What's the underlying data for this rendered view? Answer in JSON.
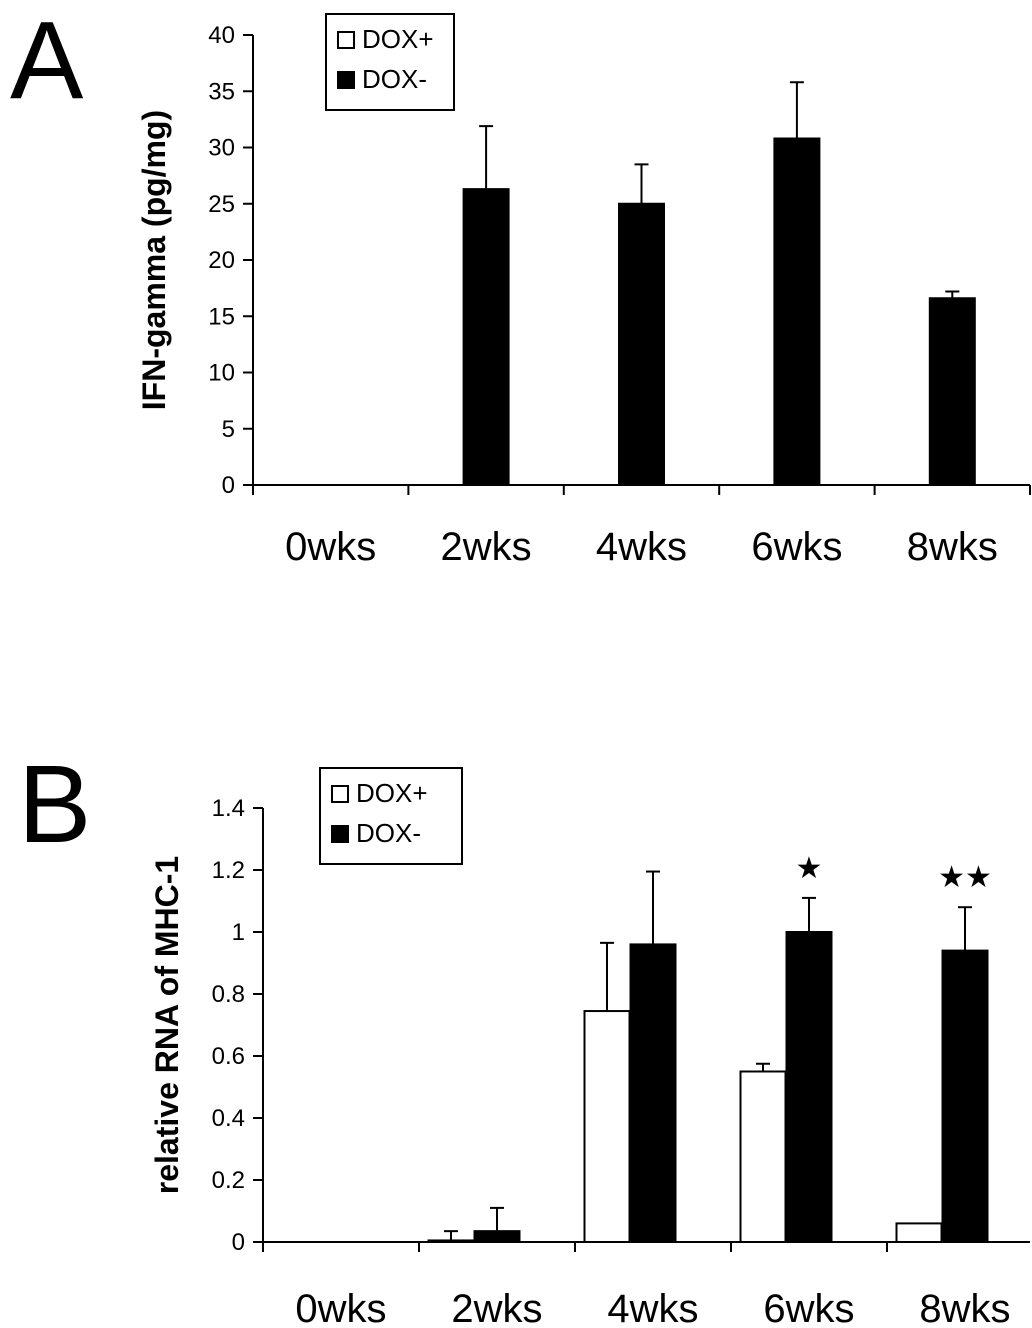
{
  "chart_data": [
    {
      "type": "bar",
      "panel_label": "A",
      "ylabel": "IFN-gamma (pg/mg)",
      "xlabel": "",
      "ylim": [
        0,
        40
      ],
      "yticks": [
        "0",
        "5",
        "10",
        "15",
        "20",
        "25",
        "30",
        "35",
        "40"
      ],
      "categories": [
        "0wks",
        "2wks",
        "4wks",
        "6wks",
        "8wks"
      ],
      "legend": {
        "position": "top-left",
        "entries": [
          "DOX+",
          "DOX-"
        ]
      },
      "grid": false,
      "series": [
        {
          "name": "DOX+",
          "color": "#ffffff",
          "values": [
            0,
            0,
            0,
            0,
            0
          ],
          "errors": [
            0,
            0,
            0,
            0,
            0
          ]
        },
        {
          "name": "DOX-",
          "color": "#000000",
          "values": [
            0,
            26.3,
            25.0,
            30.8,
            16.6
          ],
          "errors": [
            0,
            5.6,
            3.5,
            5.0,
            0.6
          ]
        }
      ],
      "annotations": []
    },
    {
      "type": "bar",
      "panel_label": "B",
      "ylabel": "relative RNA of MHC-1",
      "xlabel": "",
      "ylim": [
        0,
        1.4
      ],
      "yticks": [
        "0",
        "0.2",
        "0.4",
        "0.6",
        "0.8",
        "1",
        "1.2",
        "1.4"
      ],
      "categories": [
        "0wks",
        "2wks",
        "4wks",
        "6wks",
        "8wks"
      ],
      "legend": {
        "position": "top-left",
        "entries": [
          "DOX+",
          "DOX-"
        ]
      },
      "grid": false,
      "series": [
        {
          "name": "DOX+",
          "color": "#ffffff",
          "values": [
            0,
            0.005,
            0.745,
            0.55,
            0.06
          ],
          "errors": [
            0,
            0.03,
            0.22,
            0.025,
            0
          ]
        },
        {
          "name": "DOX-",
          "color": "#000000",
          "values": [
            0,
            0.035,
            0.96,
            1.0,
            0.94
          ],
          "errors": [
            0,
            0.075,
            0.235,
            0.11,
            0.14
          ]
        }
      ],
      "annotations": [
        {
          "category_index": 3,
          "series_index": 1,
          "text": "★"
        },
        {
          "category_index": 4,
          "series_index": 1,
          "text": "★★"
        }
      ]
    }
  ]
}
